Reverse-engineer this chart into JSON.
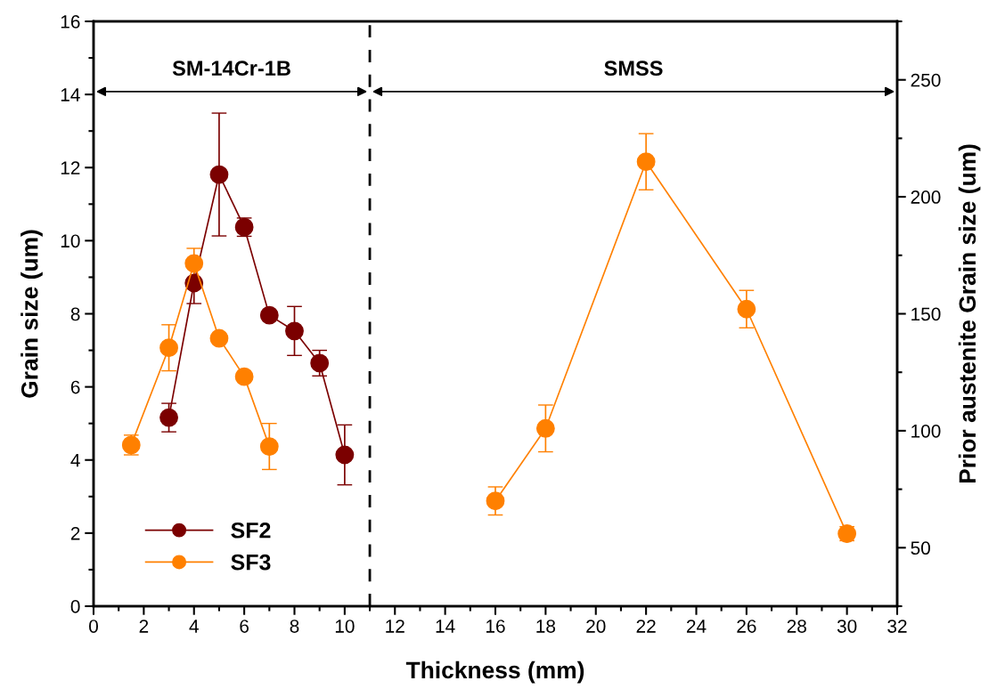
{
  "chart_data": {
    "type": "line",
    "xlabel": "Thickness (mm)",
    "ylabel": "Grain size (um)",
    "y2label": "Prior austenite Grain size (um)",
    "xlim": [
      0,
      32
    ],
    "xticks": [
      0,
      {
        "value": 1,
        "label": null
      },
      2,
      {
        "value": 3,
        "label": null
      },
      4,
      {
        "value": 5,
        "label": null
      },
      6,
      {
        "value": 7,
        "label": null
      },
      8,
      {
        "value": 9,
        "label": null
      },
      10,
      {
        "value": 11,
        "label": null
      },
      12,
      {
        "value": 13,
        "label": null
      },
      14,
      {
        "value": 15,
        "label": null
      },
      16,
      {
        "value": 17,
        "label": null
      },
      18,
      {
        "value": 19,
        "label": null
      },
      20,
      {
        "value": 21,
        "label": null
      },
      22,
      {
        "value": 23,
        "label": null
      },
      24,
      {
        "value": 25,
        "label": null
      },
      26,
      {
        "value": 27,
        "label": null
      },
      28,
      {
        "value": 29,
        "label": null
      },
      30,
      {
        "value": 31,
        "label": null
      },
      32
    ],
    "ylim": [
      0,
      16
    ],
    "yticks": [
      0,
      {
        "value": 1,
        "label": null
      },
      2,
      {
        "value": 3,
        "label": null
      },
      4,
      {
        "value": 5,
        "label": null
      },
      6,
      {
        "value": 7,
        "label": null
      },
      8,
      {
        "value": 9,
        "label": null
      },
      10,
      {
        "value": 11,
        "label": null
      },
      12,
      {
        "value": 13,
        "label": null
      },
      14,
      {
        "value": 15,
        "label": null
      },
      16
    ],
    "y2lim": [
      25,
      275
    ],
    "y2ticks": [
      {
        "value": 25,
        "label": null
      },
      50,
      {
        "value": 75,
        "label": null
      },
      100,
      {
        "value": 125,
        "label": null
      },
      150,
      {
        "value": 175,
        "label": null
      },
      200,
      {
        "value": 225,
        "label": null
      },
      250,
      {
        "value": 275,
        "label": null
      }
    ],
    "marker": "circle",
    "line_style": "solid",
    "grid": false,
    "legend": "bottom left",
    "series": [
      {
        "name": "SF2",
        "color": "#7b0000",
        "x": [
          3,
          4,
          5,
          6,
          7,
          8,
          9,
          10
        ],
        "values": [
          5.16,
          8.84,
          11.81,
          10.37,
          7.96,
          7.53,
          6.65,
          4.14
        ],
        "errors": [
          0.39,
          0.56,
          1.68,
          0.25,
          null,
          0.67,
          0.35,
          0.82
        ]
      },
      {
        "name": "SF3",
        "color": "#ff8000",
        "x": [
          1.5,
          3,
          4,
          5,
          6,
          7
        ],
        "values": [
          4.41,
          7.07,
          9.38,
          7.33,
          6.28,
          4.37
        ],
        "errors": [
          0.27,
          0.63,
          0.41,
          null,
          null,
          0.63
        ]
      },
      {
        "color": "#ff8000",
        "axis": "y2",
        "x": [
          16,
          18,
          22,
          26,
          30
        ],
        "values": [
          70,
          101,
          215,
          152,
          56
        ],
        "errors": [
          6,
          10,
          12,
          8,
          3
        ]
      }
    ],
    "ref_lines": [
      {
        "axis": "x",
        "value": 11,
        "color": "#000000",
        "line_style": "dashed"
      }
    ],
    "annotations": [
      "SM-14Cr-1B",
      "SMSS"
    ]
  }
}
